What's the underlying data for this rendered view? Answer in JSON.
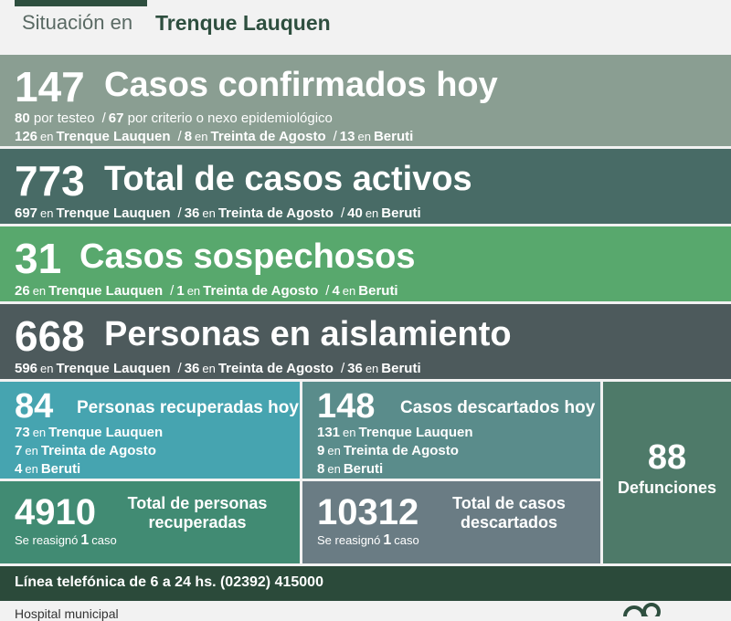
{
  "header": {
    "label": "Situación en",
    "city": "Trenque Lauquen"
  },
  "confirmed": {
    "number": "147",
    "title": "Casos confirmados hoy",
    "by_method": [
      {
        "value": "80",
        "text": "por testeo"
      },
      {
        "value": "67",
        "text": "por criterio o nexo epidemiológico"
      }
    ],
    "by_place": [
      {
        "value": "126",
        "place": "Trenque Lauquen"
      },
      {
        "value": "8",
        "place": "Treinta de Agosto"
      },
      {
        "value": "13",
        "place": "Beruti"
      }
    ]
  },
  "active": {
    "number": "773",
    "title": "Total de casos activos",
    "by_place": [
      {
        "value": "697",
        "place": "Trenque Lauquen"
      },
      {
        "value": "36",
        "place": "Treinta de Agosto"
      },
      {
        "value": "40",
        "place": "Beruti"
      }
    ]
  },
  "suspected": {
    "number": "31",
    "title": "Casos sospechosos",
    "by_place": [
      {
        "value": "26",
        "place": "Trenque Lauquen"
      },
      {
        "value": "1",
        "place": "Treinta de Agosto"
      },
      {
        "value": "4",
        "place": "Beruti"
      }
    ]
  },
  "isolation": {
    "number": "668",
    "title": "Personas en aislamiento",
    "by_place": [
      {
        "value": "596",
        "place": "Trenque Lauquen"
      },
      {
        "value": "36",
        "place": "Treinta de Agosto"
      },
      {
        "value": "36",
        "place": "Beruti"
      }
    ]
  },
  "recovered_today": {
    "number": "84",
    "title": "Personas recuperadas hoy",
    "by_place": [
      {
        "value": "73",
        "place": "Trenque Lauquen"
      },
      {
        "value": "7",
        "place": "Treinta de Agosto"
      },
      {
        "value": "4",
        "place": "Beruti"
      }
    ]
  },
  "discarded_today": {
    "number": "148",
    "title": "Casos descartados hoy",
    "by_place": [
      {
        "value": "131",
        "place": "Trenque Lauquen"
      },
      {
        "value": "9",
        "place": "Treinta de Agosto"
      },
      {
        "value": "8",
        "place": "Beruti"
      }
    ]
  },
  "recovered_total": {
    "number": "4910",
    "title_1": "Total de personas",
    "title_2": "recuperadas",
    "reassigned_prefix": "Se reasignó",
    "reassigned_value": "1",
    "reassigned_suffix": "caso"
  },
  "discarded_total": {
    "number": "10312",
    "title_1": "Total de casos",
    "title_2": "descartados",
    "reassigned_prefix": "Se reasignó",
    "reassigned_value": "1",
    "reassigned_suffix": "caso"
  },
  "deaths": {
    "number": "88",
    "label": "Defunciones"
  },
  "connector": "en",
  "phone_line": "Línea telefónica de 6 a 24 hs. (02392) 415000",
  "footer": {
    "text": "Hospital municipal"
  },
  "colors": {
    "dark_green": "#2e4f3f",
    "confirmed_bg": "#8a9e92",
    "active_bg": "#486b66",
    "suspected_bg": "#58a86d",
    "isolation_bg": "#4d5a5c",
    "recovered_today_bg": "#46a4b0",
    "discarded_today_bg": "#5a8c8b",
    "recovered_total_bg": "#418b73",
    "discarded_total_bg": "#6a7c84",
    "deaths_bg": "#4e7a69",
    "phone_bg": "#2b4a3a"
  }
}
